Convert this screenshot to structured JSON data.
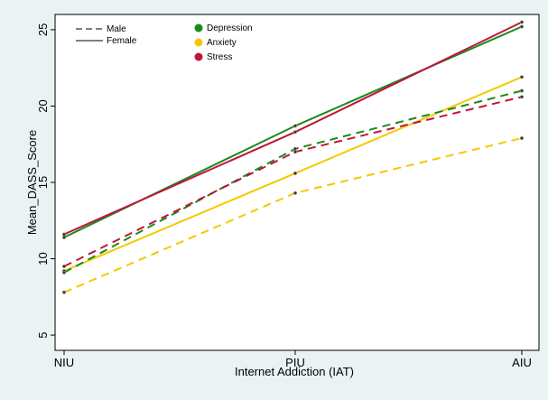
{
  "chart_data": {
    "type": "line",
    "title": "",
    "xlabel": "Internet Addiction (IAT)",
    "ylabel": "Mean_DASS_Score",
    "categories": [
      "NIU",
      "PIU",
      "AIU"
    ],
    "ylim": [
      4,
      26
    ],
    "yticks": [
      "5",
      "10",
      "15",
      "20",
      "25"
    ],
    "grid": false,
    "legend_placement": "top-left",
    "linestyle_legend": [
      {
        "label": "Male",
        "dash": "dashed"
      },
      {
        "label": "Female",
        "dash": "solid"
      }
    ],
    "measure_legend": [
      {
        "label": "Depression",
        "color": "#1a8a1a"
      },
      {
        "label": "Anxiety",
        "color": "#f5c800"
      },
      {
        "label": "Stress",
        "color": "#c0143c"
      }
    ],
    "series": [
      {
        "measure": "Depression",
        "gender": "Female",
        "color": "#1a8a1a",
        "dash": "solid",
        "values": [
          11.4,
          18.7,
          25.2
        ]
      },
      {
        "measure": "Stress",
        "gender": "Female",
        "color": "#c0143c",
        "dash": "solid",
        "values": [
          11.6,
          18.3,
          25.5
        ]
      },
      {
        "measure": "Anxiety",
        "gender": "Female",
        "color": "#f5c800",
        "dash": "solid",
        "values": [
          9.2,
          15.6,
          21.9
        ]
      },
      {
        "measure": "Depression",
        "gender": "Male",
        "color": "#1a8a1a",
        "dash": "dashed",
        "values": [
          9.1,
          17.2,
          21.0
        ]
      },
      {
        "measure": "Stress",
        "gender": "Male",
        "color": "#c0143c",
        "dash": "dashed",
        "values": [
          9.5,
          17.0,
          20.6
        ]
      },
      {
        "measure": "Anxiety",
        "gender": "Male",
        "color": "#f5c800",
        "dash": "dashed",
        "values": [
          7.8,
          14.3,
          17.9
        ]
      }
    ]
  }
}
